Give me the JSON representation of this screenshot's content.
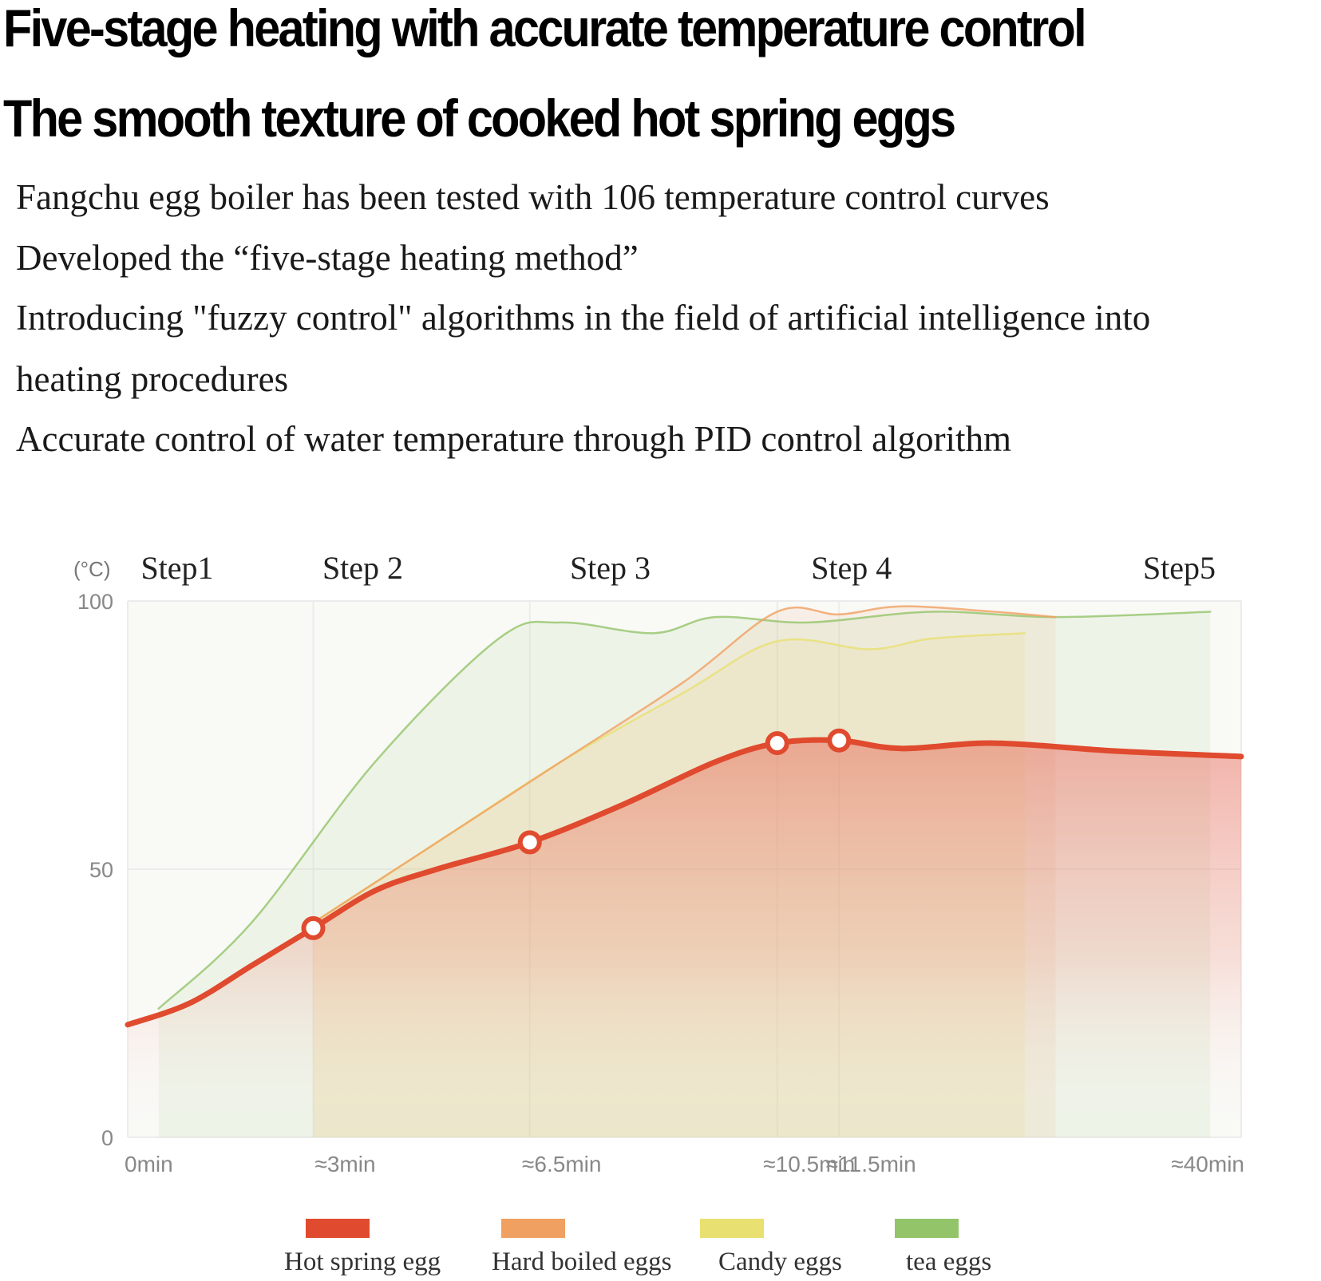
{
  "headline": {
    "line1": "Five-stage heating with accurate temperature control",
    "line2": "The smooth texture of cooked hot spring eggs"
  },
  "body_lines": [
    "Fangchu egg boiler has been tested with 106 temperature control curves",
    "Developed the “five-stage heating method”",
    "Introducing \"fuzzy control\" algorithms in the field of artificial intelligence into",
    "heating procedures",
    "Accurate control of water temperature through PID control algorithm"
  ],
  "chart_data": {
    "type": "line",
    "y_unit_label": "(°C)",
    "ylim": [
      0,
      100
    ],
    "y_ticks": [
      0,
      50,
      100
    ],
    "x_tick_labels": [
      "0min",
      "≈3min",
      "≈6.5min",
      "≈10.5min",
      "≈11.5min",
      "≈40min"
    ],
    "x_tick_positions": [
      0,
      3,
      6.5,
      10.5,
      11.5,
      18
    ],
    "xlim": [
      0,
      18
    ],
    "step_labels": [
      "Step1",
      "Step 2",
      "Step 3",
      "Step 4",
      "Step5"
    ],
    "step_label_x": [
      0.8,
      3.8,
      7.8,
      11.7,
      17.0
    ],
    "grid": true,
    "legend_position": "bottom",
    "series": [
      {
        "name": "Hot spring egg",
        "color": "#e04a2e",
        "x": [
          0,
          1,
          2,
          3,
          4,
          5,
          6.5,
          8,
          9.5,
          10.5,
          11.5,
          12.5,
          14,
          16,
          18
        ],
        "values": [
          21,
          25,
          32,
          39,
          46,
          50,
          55,
          62,
          70,
          73.5,
          74,
          72.5,
          73.5,
          72,
          71
        ],
        "markers": [
          3,
          6.5,
          10.5,
          11.5
        ]
      },
      {
        "name": "Hard boiled eggs",
        "color": "#f0a060",
        "x": [
          3,
          5,
          7,
          9,
          10.5,
          11.5,
          12.5,
          14,
          15
        ],
        "values": [
          40,
          55,
          70,
          85,
          98,
          97.5,
          99,
          98,
          97
        ]
      },
      {
        "name": "Candy eggs",
        "color": "#e8e070",
        "x": [
          3,
          5,
          7,
          9,
          10.5,
          12,
          13,
          14.5
        ],
        "values": [
          40,
          55,
          70,
          83,
          92.5,
          91,
          93,
          94
        ]
      },
      {
        "name": "tea eggs",
        "color": "#94c46a",
        "x": [
          0.5,
          2,
          4,
          6,
          7,
          8.5,
          9.5,
          11,
          13,
          15,
          17.5
        ],
        "values": [
          24,
          40,
          70,
          93,
          96,
          94,
          97,
          96,
          98,
          97,
          98
        ]
      }
    ]
  }
}
